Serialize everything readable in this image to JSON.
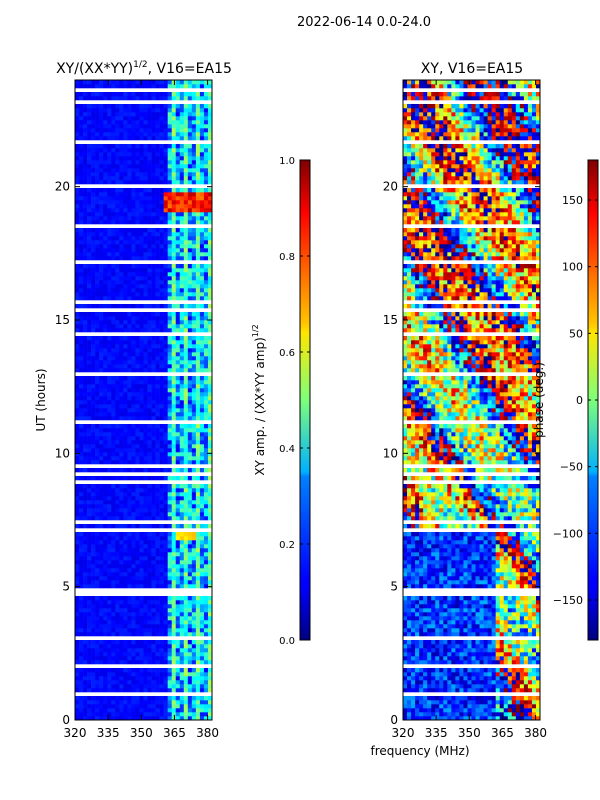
{
  "figure": {
    "suptitle": "2022-06-14 0.0-24.0",
    "xlabel": "frequency (MHz)"
  },
  "chart_data": [
    {
      "type": "heatmap",
      "title_prefix": "XY/(XX*YY)",
      "title_exponent": "1/2",
      "title_suffix": ", V16=EA15",
      "xlabel": "",
      "ylabel": "UT (hours)",
      "xlim": [
        320,
        382
      ],
      "ylim": [
        0,
        24
      ],
      "xticks": [
        320,
        335,
        350,
        365,
        380
      ],
      "yticks": [
        0,
        5,
        10,
        15,
        20
      ],
      "colorbar": {
        "label_prefix": "XY amp. / (XX*YY amp)",
        "label_exponent": "1/2",
        "range": [
          0.0,
          1.0
        ],
        "ticks": [
          0.0,
          0.2,
          0.4,
          0.6,
          0.8,
          1.0
        ],
        "tick_labels": [
          "0.0",
          "0.2",
          "0.4",
          "0.6",
          "0.8",
          "1.0"
        ],
        "colormap": "jet"
      }
    },
    {
      "type": "heatmap",
      "title": "XY, V16=EA15",
      "xlabel": "",
      "ylabel": "",
      "xlim": [
        320,
        382
      ],
      "ylim": [
        0,
        24
      ],
      "xticks": [
        320,
        335,
        350,
        365,
        380
      ],
      "yticks": [
        0,
        5,
        10,
        15,
        20
      ],
      "colorbar": {
        "label": "phase (deg.)",
        "range": [
          -180,
          180
        ],
        "ticks": [
          -150,
          -100,
          -50,
          0,
          50,
          100,
          150
        ],
        "tick_labels": [
          "−150",
          "−100",
          "−50",
          "0",
          "50",
          "100",
          "150"
        ],
        "colormap": "jet"
      }
    }
  ]
}
